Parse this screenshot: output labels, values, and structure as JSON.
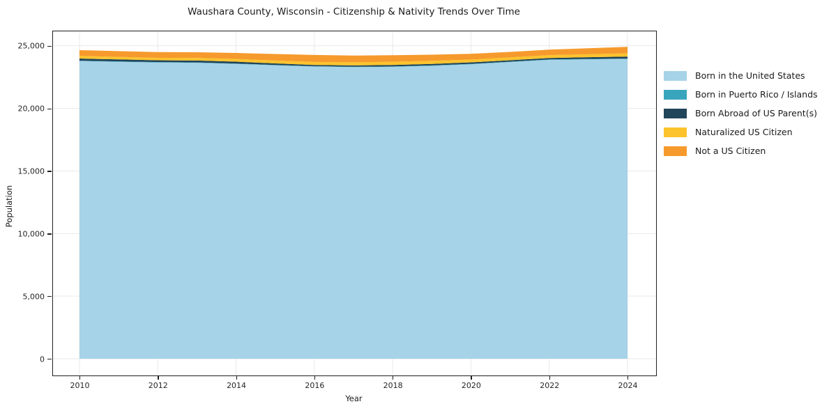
{
  "chart_data": {
    "type": "area",
    "stacked": true,
    "title": "Waushara County, Wisconsin - Citizenship & Nativity Trends Over Time",
    "xlabel": "Year",
    "ylabel": "Population",
    "x": [
      2010,
      2011,
      2012,
      2013,
      2014,
      2015,
      2016,
      2017,
      2018,
      2019,
      2020,
      2021,
      2022,
      2023,
      2024
    ],
    "series": [
      {
        "name": "Born in the United States",
        "color": "#a6d3e8",
        "values": [
          23780,
          23720,
          23665,
          23640,
          23550,
          23440,
          23340,
          23300,
          23320,
          23400,
          23525,
          23700,
          23880,
          23920,
          23950
        ]
      },
      {
        "name": "Born in Puerto Rico / Islands",
        "color": "#39a5bd",
        "values": [
          30,
          30,
          30,
          30,
          30,
          30,
          30,
          30,
          30,
          30,
          30,
          30,
          30,
          30,
          30
        ]
      },
      {
        "name": "Born Abroad of US Parent(s)",
        "color": "#21455a",
        "values": [
          170,
          160,
          145,
          150,
          150,
          120,
          95,
          100,
          115,
          120,
          120,
          115,
          115,
          135,
          155
        ]
      },
      {
        "name": "Naturalized US Citizen",
        "color": "#fcc32d",
        "values": [
          210,
          205,
          200,
          210,
          220,
          230,
          245,
          250,
          260,
          250,
          225,
          225,
          225,
          240,
          260
        ]
      },
      {
        "name": "Not a US Citizen",
        "color": "#f69a2d",
        "values": [
          460,
          460,
          460,
          450,
          480,
          520,
          560,
          540,
          520,
          490,
          460,
          440,
          440,
          480,
          520
        ]
      }
    ],
    "ylim": [
      0,
      25000
    ],
    "yticks": [
      {
        "value": 0,
        "label": "0"
      },
      {
        "value": 5000,
        "label": "5,000"
      },
      {
        "value": 10000,
        "label": "10,000"
      },
      {
        "value": 15000,
        "label": "15,000"
      },
      {
        "value": 20000,
        "label": "20,000"
      },
      {
        "value": 25000,
        "label": "25,000"
      }
    ],
    "xticks": [
      {
        "value": 2010,
        "label": "2010"
      },
      {
        "value": 2012,
        "label": "2012"
      },
      {
        "value": 2014,
        "label": "2014"
      },
      {
        "value": 2016,
        "label": "2016"
      },
      {
        "value": 2018,
        "label": "2018"
      },
      {
        "value": 2020,
        "label": "2020"
      },
      {
        "value": 2022,
        "label": "2022"
      },
      {
        "value": 2024,
        "label": "2024"
      }
    ],
    "grid": true,
    "grid_color": "#e9e9e9",
    "legend_position": "right"
  }
}
